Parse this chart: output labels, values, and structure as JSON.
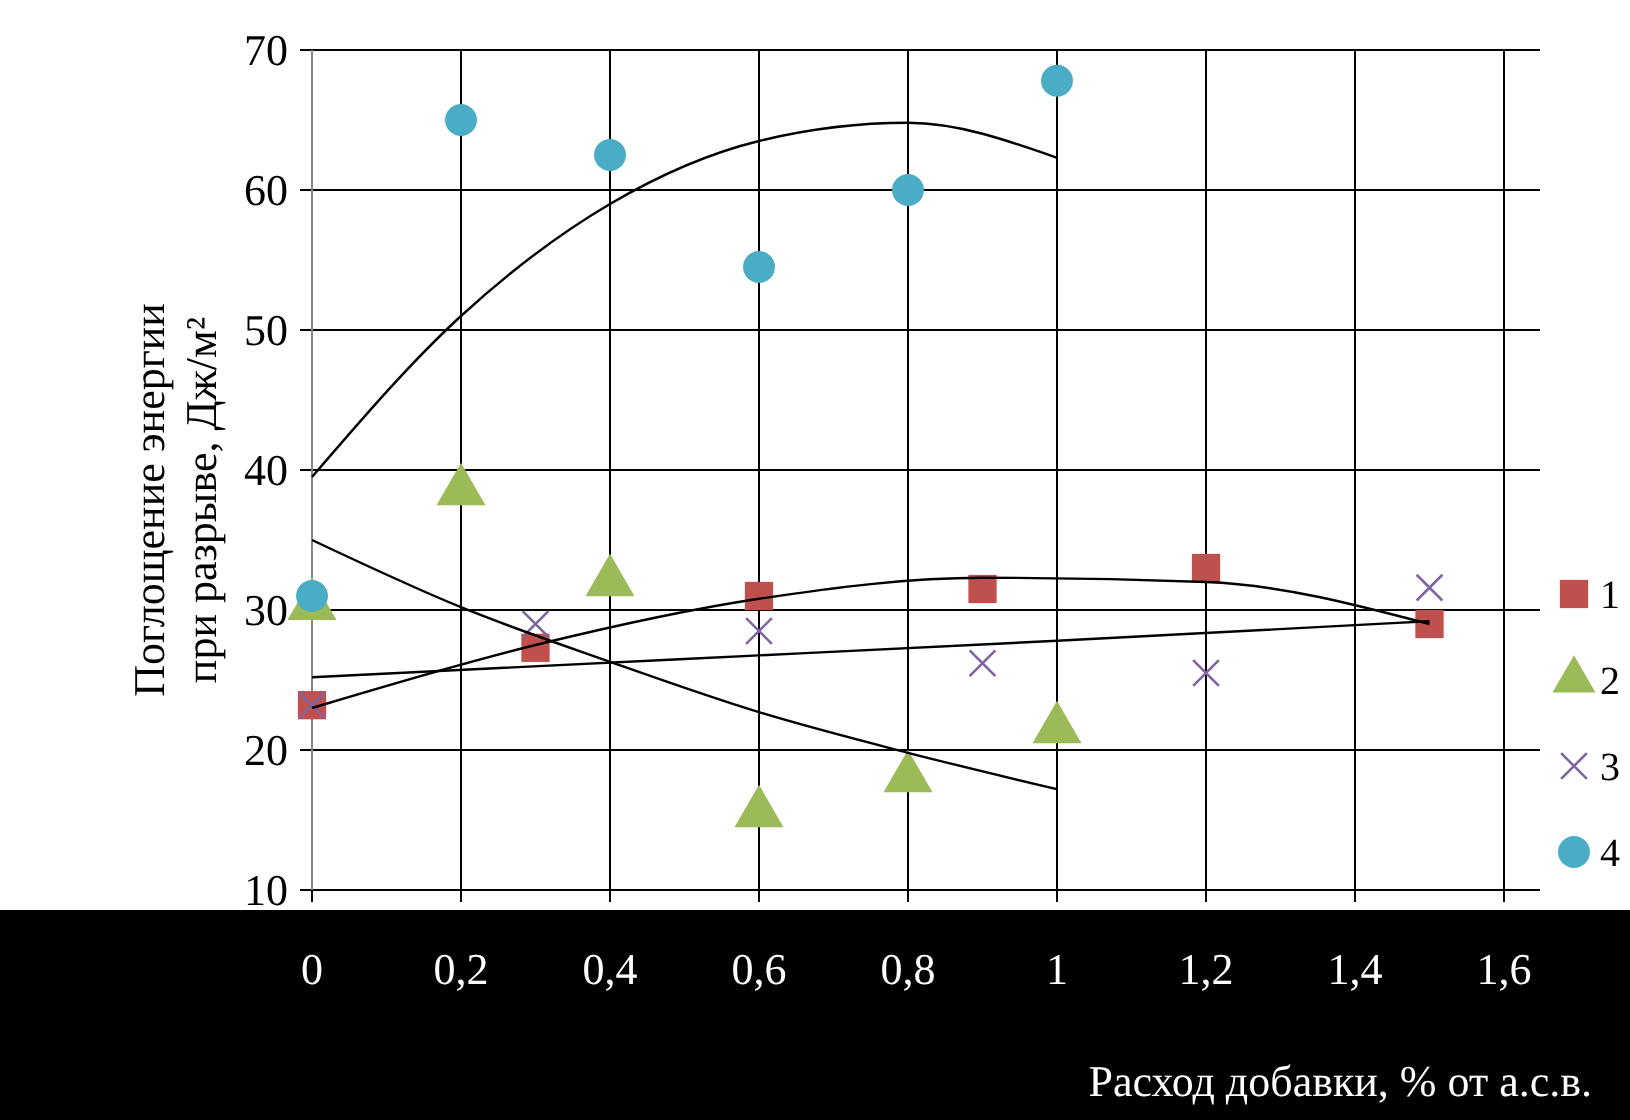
{
  "chart_data": {
    "type": "scatter",
    "xlabel": "Расход добавки, % от а.с.в.",
    "ylabel": "Поглощение энергии при разрыве, Дж/м²",
    "xlim": [
      0,
      1.6
    ],
    "ylim": [
      10,
      70
    ],
    "xticks": [
      0,
      {
        "value": 0.2,
        "label": "0,2"
      },
      {
        "value": 0.4,
        "label": "0,4"
      },
      {
        "value": 0.6,
        "label": "0,6"
      },
      {
        "value": 0.8,
        "label": "0,8"
      },
      1,
      {
        "value": 1.2,
        "label": "1,2"
      },
      {
        "value": 1.4,
        "label": "1,4"
      },
      {
        "value": 1.6,
        "label": "1,6"
      }
    ],
    "yticks": [
      10,
      20,
      30,
      40,
      50,
      60,
      70
    ],
    "grid": true,
    "legend": "right",
    "series": [
      {
        "name": "1",
        "color": "#c0504d",
        "marker": "square",
        "x": [
          0,
          0.3,
          0.6,
          0.9,
          1.2,
          1.5
        ],
        "values": [
          23.2,
          27.3,
          31,
          31.5,
          33,
          29
        ]
      },
      {
        "name": "2",
        "color": "#9bbb59",
        "marker": "triangle",
        "x": [
          0,
          0.2,
          0.4,
          0.6,
          0.8,
          1.0
        ],
        "values": [
          30.3,
          38.5,
          32,
          15.5,
          18,
          21.5
        ]
      },
      {
        "name": "3",
        "color": "#8064a2",
        "marker": "cross",
        "x": [
          0,
          0.3,
          0.6,
          0.9,
          1.2,
          1.5
        ],
        "values": [
          23.2,
          29,
          28.5,
          26.2,
          25.5,
          31.6
        ]
      },
      {
        "name": "4",
        "color": "#4bacc6",
        "marker": "circle",
        "x": [
          0,
          0.2,
          0.4,
          0.6,
          0.8,
          1.0
        ],
        "values": [
          31,
          65,
          62.5,
          54.5,
          60,
          67.8
        ]
      },
      {
        "type": "line",
        "color": "#000000",
        "marker": "none",
        "x": [
          0,
          0.3,
          0.6,
          0.9,
          1.2,
          1.5
        ],
        "values": [
          23,
          27.5,
          30.8,
          32.3,
          32,
          29
        ]
      },
      {
        "type": "line",
        "color": "#000000",
        "marker": "none",
        "x": [
          0,
          0.2,
          0.4,
          0.6,
          0.8,
          1.0
        ],
        "values": [
          35,
          30.2,
          26.3,
          22.7,
          19.8,
          17.2
        ]
      },
      {
        "type": "line",
        "color": "#000000",
        "marker": "none",
        "x": [
          0,
          0.5,
          1.0,
          1.5
        ],
        "values": [
          25.2,
          26.5,
          27.8,
          29.2
        ]
      },
      {
        "type": "line",
        "color": "#000000",
        "marker": "none",
        "x": [
          0,
          0.2,
          0.4,
          0.6,
          0.8,
          1.0
        ],
        "values": [
          39.5,
          51,
          59,
          63.5,
          64.8,
          62.3
        ]
      }
    ]
  }
}
